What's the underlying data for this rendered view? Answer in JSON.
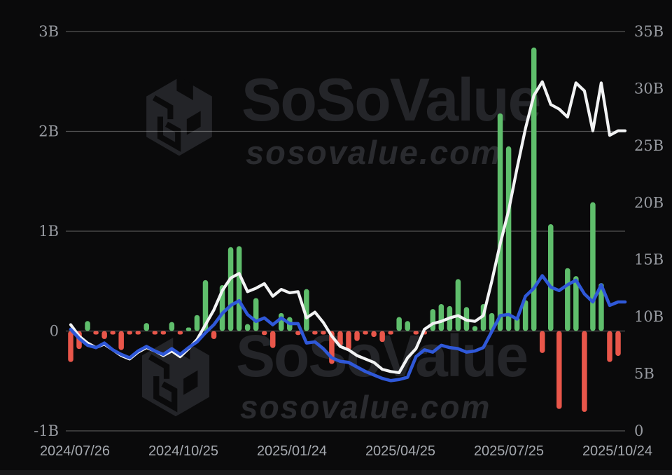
{
  "watermark": {
    "brand": "SoSoValue",
    "domain": "sosovalue.com"
  },
  "chart_data": {
    "type": "bar",
    "subtype": "weekly bars with two overlay lines",
    "title": "",
    "legend": "none",
    "grid": "horizontal-only",
    "x_axis": {
      "granularity": "weekly",
      "num_points": 66,
      "tick_labels": [
        "2024/07/26",
        "2024/10/25",
        "2025/01/24",
        "2025/04/25",
        "2025/07/25",
        "2025/10/24"
      ]
    },
    "left_y_axis": {
      "applies_to": "bars",
      "tick_labels": [
        "3B",
        "2B",
        "1B",
        "0",
        "-1B"
      ],
      "tick_values": [
        3,
        2,
        1,
        0,
        -1
      ],
      "range": [
        -1,
        3
      ]
    },
    "right_y_axis": {
      "applies_to": "lines",
      "tick_labels": [
        "35B",
        "30B",
        "25B",
        "20B",
        "15B",
        "10B",
        "5B",
        "0"
      ],
      "tick_values": [
        35,
        30,
        25,
        20,
        15,
        10,
        5,
        0
      ],
      "range": [
        0,
        35
      ]
    },
    "bars": {
      "name": "weekly-net-flow",
      "unit": "B",
      "values": [
        -0.31,
        -0.18,
        0.1,
        -0.03,
        -0.08,
        -0.03,
        -0.19,
        -0.03,
        -0.03,
        0.08,
        -0.03,
        -0.03,
        0.09,
        -0.03,
        0.03,
        0.16,
        0.51,
        -0.08,
        0.46,
        0.84,
        0.85,
        0.07,
        0.33,
        -0.04,
        -0.17,
        0.18,
        0.14,
        -0.04,
        0.42,
        -0.03,
        -0.03,
        -0.33,
        -0.15,
        -0.19,
        -0.1,
        -0.03,
        -0.06,
        -0.11,
        -0.03,
        0.14,
        0.1,
        -0.03,
        -0.03,
        0.22,
        0.27,
        0.25,
        0.52,
        0.24,
        0.05,
        0.27,
        0.18,
        2.18,
        1.85,
        0.14,
        0.31,
        2.84,
        -0.22,
        1.07,
        -0.78,
        0.63,
        0.55,
        -0.81,
        1.29,
        0.48,
        -0.31,
        -0.25
      ]
    },
    "series": [
      {
        "name": "white-line",
        "axis": "right",
        "unit": "B",
        "color": "#f2f3f4",
        "values": [
          9.3,
          8.3,
          7.7,
          7.3,
          7.6,
          7.1,
          6.6,
          6.3,
          6.9,
          7.3,
          7.0,
          6.6,
          7.0,
          6.5,
          7.2,
          8.0,
          9.3,
          10.6,
          12.3,
          13.4,
          13.8,
          12.2,
          12.5,
          12.9,
          11.8,
          12.4,
          12.1,
          12.2,
          9.9,
          10.4,
          9.5,
          8.3,
          7.4,
          7.1,
          6.6,
          6.3,
          6.0,
          5.4,
          5.2,
          5.1,
          6.4,
          7.2,
          8.9,
          9.4,
          9.6,
          9.9,
          10.1,
          9.7,
          9.6,
          10.1,
          13.1,
          16.4,
          19.3,
          23.0,
          26.5,
          29.4,
          30.6,
          28.6,
          28.2,
          27.5,
          30.5,
          29.8,
          26.3,
          30.5,
          25.9,
          26.3
        ]
      },
      {
        "name": "blue-line",
        "axis": "right",
        "unit": "B",
        "color": "#2f58d8",
        "values": [
          8.9,
          8.1,
          7.5,
          7.3,
          7.7,
          7.1,
          6.7,
          6.4,
          7.0,
          7.4,
          7.0,
          6.7,
          7.2,
          6.7,
          7.3,
          7.8,
          8.6,
          9.3,
          10.3,
          11.0,
          11.4,
          10.2,
          9.6,
          9.9,
          9.3,
          9.9,
          9.4,
          9.4,
          7.7,
          7.8,
          7.2,
          6.4,
          6.1,
          6.0,
          5.6,
          5.2,
          4.9,
          4.6,
          4.4,
          4.5,
          4.7,
          6.5,
          7.1,
          6.9,
          7.5,
          7.3,
          7.2,
          6.9,
          7.0,
          7.3,
          8.7,
          10.1,
          10.2,
          9.8,
          11.8,
          12.5,
          13.6,
          12.6,
          12.3,
          12.8,
          13.2,
          12.0,
          11.3,
          12.8,
          11.0,
          11.3
        ]
      }
    ],
    "colors": {
      "positive_bar": "#5fbe6c",
      "negative_bar": "#e9564a",
      "gridline": "rgba(255,255,255,0.30)",
      "y_label": "#979aa0",
      "x_label": "#a5a9af",
      "background": "#0a0a0b"
    }
  }
}
